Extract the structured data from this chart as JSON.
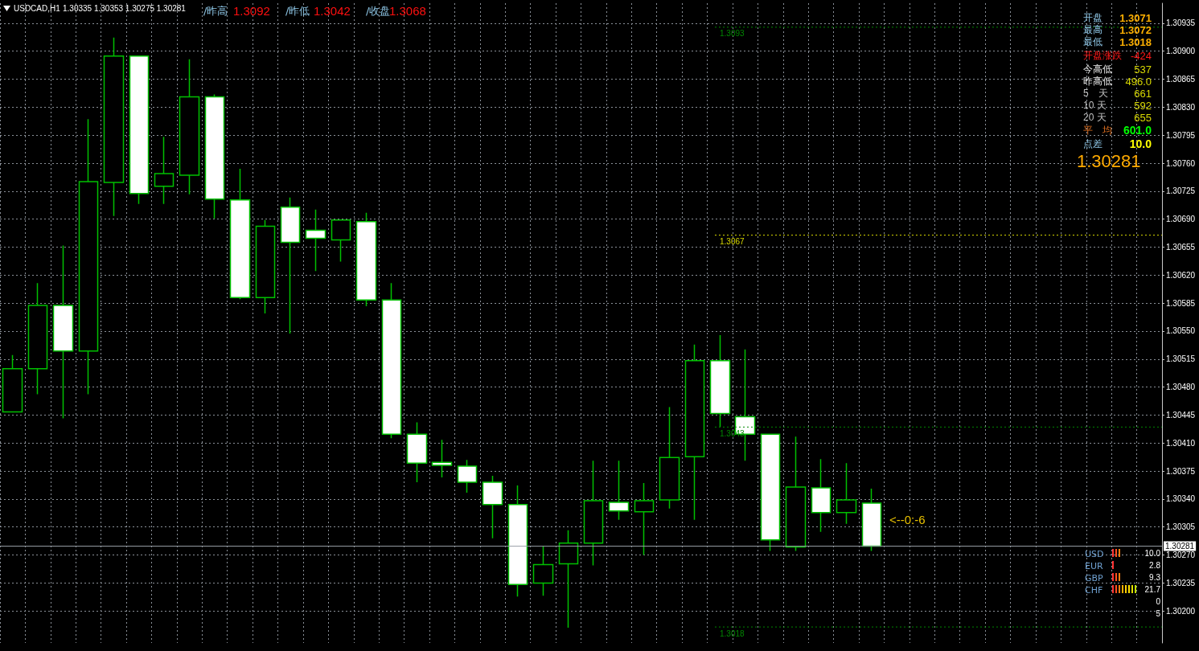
{
  "chart_data": {
    "type": "candlestick",
    "title": "USDCAD,H1",
    "subtitle": "1.30335 1.30353 1.30275 1.30281",
    "categories": [
      null,
      null,
      null,
      null,
      null,
      null,
      null,
      null,
      null,
      null,
      null,
      null,
      null,
      null,
      null,
      null,
      null,
      null,
      null,
      null,
      null,
      null,
      null,
      null,
      null,
      null,
      null,
      null,
      null,
      null,
      null,
      null,
      null,
      null,
      null,
      null,
      null,
      null,
      null,
      null,
      null,
      null,
      null,
      null,
      null,
      null
    ],
    "ohlc": [
      [
        1.30449,
        1.3052,
        1.30449,
        1.30503
      ],
      [
        1.30503,
        1.3061,
        1.30471,
        1.30582
      ],
      [
        1.30582,
        1.30657,
        1.30441,
        1.30525
      ],
      [
        1.30525,
        1.30815,
        1.30471,
        1.30737
      ],
      [
        1.30736,
        1.30917,
        1.30694,
        1.30894
      ],
      [
        1.30894,
        1.30894,
        1.30709,
        1.30722
      ],
      [
        1.30731,
        1.30793,
        1.30709,
        1.30747
      ],
      [
        1.30745,
        1.3089,
        1.30721,
        1.30843
      ],
      [
        1.30843,
        1.30846,
        1.30691,
        1.30715
      ],
      [
        1.30714,
        1.30753,
        1.3059,
        1.30592
      ],
      [
        1.30592,
        1.30689,
        1.30572,
        1.30681
      ],
      [
        1.30705,
        1.30717,
        1.30547,
        1.30661
      ],
      [
        1.30676,
        1.30702,
        1.30625,
        1.30666
      ],
      [
        1.30664,
        1.30689,
        1.30637,
        1.30689
      ],
      [
        1.30687,
        1.30698,
        1.30581,
        1.30589
      ],
      [
        1.30589,
        1.3061,
        1.30416,
        1.30421
      ],
      [
        1.30421,
        1.30436,
        1.30361,
        1.30385
      ],
      [
        1.30386,
        1.30414,
        1.30367,
        1.30382
      ],
      [
        1.30381,
        1.30389,
        1.30348,
        1.30361
      ],
      [
        1.30361,
        1.30369,
        1.30291,
        1.30333
      ],
      [
        1.30333,
        1.30357,
        1.30218,
        1.30233
      ],
      [
        1.30235,
        1.30281,
        1.30219,
        1.30258
      ],
      [
        1.30259,
        1.30301,
        1.30179,
        1.30285
      ],
      [
        1.30285,
        1.30388,
        1.30257,
        1.30338
      ],
      [
        1.30336,
        1.30388,
        1.30314,
        1.30325
      ],
      [
        1.30324,
        1.3036,
        1.3027,
        1.30338
      ],
      [
        1.30339,
        1.30455,
        1.30328,
        1.30392
      ],
      [
        1.30393,
        1.30533,
        1.30314,
        1.30513
      ],
      [
        1.30513,
        1.30545,
        1.3043,
        1.30447
      ],
      [
        1.30443,
        1.30527,
        1.30388,
        1.30421
      ],
      [
        1.30421,
        1.30421,
        1.30275,
        1.30289
      ],
      [
        1.3028,
        1.30418,
        1.30275,
        1.30355
      ],
      [
        1.30354,
        1.3039,
        1.30299,
        1.30323
      ],
      [
        1.30323,
        1.30385,
        1.30309,
        1.30339
      ],
      [
        1.30335,
        1.30353,
        1.30275,
        1.30281
      ],
      null,
      null,
      null,
      null,
      null,
      null,
      null,
      null,
      null,
      null,
      null
    ],
    "color": "#00c000",
    "ylim": [
      1.3016,
      1.3096
    ],
    "yticks": [
      {
        "value": 1.302,
        "label": "1.30200"
      },
      {
        "value": 1.30235,
        "label": "1.30235"
      },
      {
        "value": 1.3027,
        "label": "1.30270"
      },
      {
        "value": 1.30305,
        "label": "1.30305"
      },
      {
        "value": 1.3034,
        "label": "1.30340"
      },
      {
        "value": 1.30375,
        "label": "1.30375"
      },
      {
        "value": 1.3041,
        "label": "1.30410"
      },
      {
        "value": 1.30445,
        "label": "1.30445"
      },
      {
        "value": 1.3048,
        "label": "1.30480"
      },
      {
        "value": 1.30515,
        "label": "1.30515"
      },
      {
        "value": 1.3055,
        "label": "1.30550"
      },
      {
        "value": 1.30585,
        "label": "1.30585"
      },
      {
        "value": 1.3062,
        "label": "1.30620"
      },
      {
        "value": 1.30655,
        "label": "1.30655"
      },
      {
        "value": 1.3069,
        "label": "1.30690"
      },
      {
        "value": 1.30725,
        "label": "1.30725"
      },
      {
        "value": 1.3076,
        "label": "1.30760"
      },
      {
        "value": 1.30795,
        "label": "1.30795"
      },
      {
        "value": 1.3083,
        "label": "1.30830"
      },
      {
        "value": 1.30865,
        "label": "1.30865"
      },
      {
        "value": 1.309,
        "label": "1.30900"
      },
      {
        "value": 1.30935,
        "label": "1.30935"
      }
    ],
    "tick_labels": "y",
    "grid": true,
    "ref_lines": [
      {
        "axis": "y",
        "value": 1.3093,
        "label": "1.3093",
        "color": "#008800",
        "line_style": "dotted"
      },
      {
        "axis": "y",
        "value": 1.3067,
        "label": "1.3067",
        "color": "#d8d800",
        "line_style": "dotted"
      },
      {
        "axis": "y",
        "value": 1.3043,
        "label": "1.3043",
        "color": "#008800",
        "line_style": "dotted"
      },
      {
        "axis": "y",
        "value": 1.3018,
        "label": "1.3018",
        "color": "#008800",
        "line_style": "dotted"
      },
      {
        "axis": "y",
        "value": 1.30281,
        "label": "1.30281",
        "color": "#9aa0a8",
        "line_style": "solid"
      }
    ],
    "annotations": [
      "/昨高",
      "1.3092",
      "/昨低",
      "1.3042",
      "/收盘",
      "1.3068",
      "开盘",
      "1.3071",
      "最高",
      "1.3072",
      "最低",
      "1.3018",
      "开盘涨跌",
      "-424",
      "今高低",
      "537",
      "昨高低",
      "496.0",
      "5　天",
      "661",
      "10 天",
      "592",
      "20 天",
      "655",
      "平　均",
      "601.0",
      "点差",
      "10.0",
      "1.30281",
      "USD",
      "10.0",
      "EUR",
      "2.8",
      "GBP",
      "9.3",
      "CHF",
      "21.7",
      "0",
      "5",
      "<--0:-6"
    ]
  }
}
